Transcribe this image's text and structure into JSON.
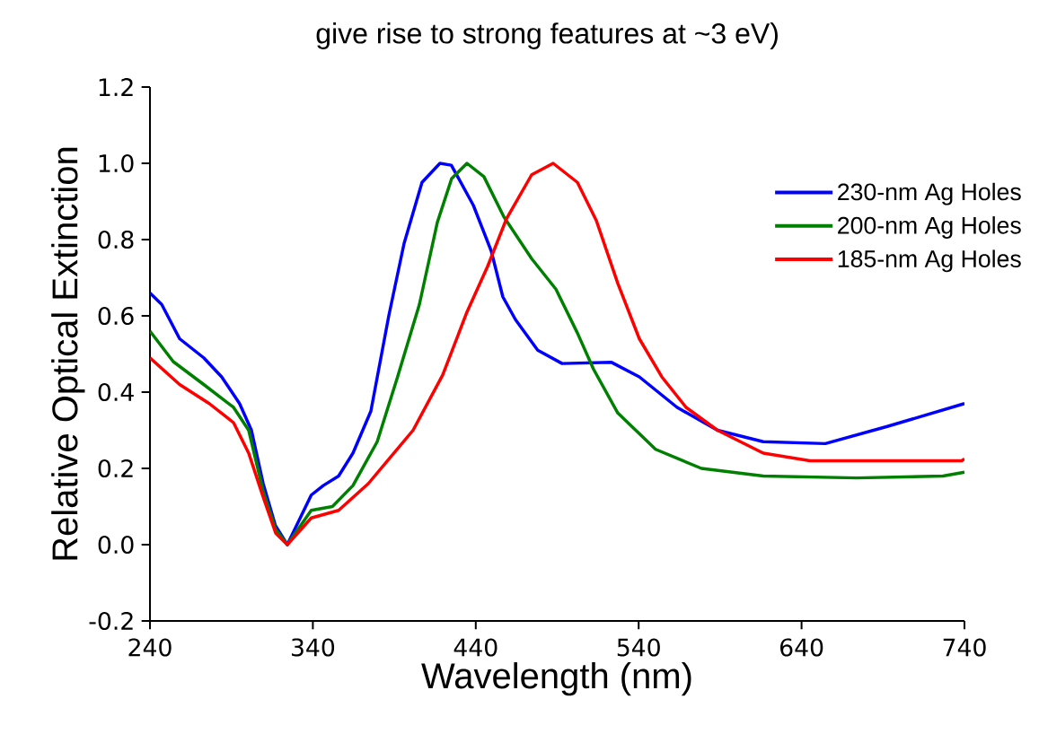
{
  "chart_data": {
    "type": "line",
    "title": "give rise to strong features at ~3 eV)",
    "xlabel": "Wavelength (nm)",
    "ylabel": "Relative Optical Extinction",
    "xlim": [
      240,
      740
    ],
    "xticks": [
      240,
      340,
      440,
      540,
      640,
      740
    ],
    "ylim": [
      -0.2,
      1.2
    ],
    "yticks": [
      {
        "value": -0.2,
        "label": "-0.2"
      },
      {
        "value": 0,
        "label": "0.0"
      },
      {
        "value": 0.2,
        "label": "0.2"
      },
      {
        "value": 0.4,
        "label": "0.4"
      },
      {
        "value": 0.6,
        "label": "0.6"
      },
      {
        "value": 0.8,
        "label": "0.8"
      },
      {
        "value": 1.0,
        "label": "1.0"
      },
      {
        "value": 1.2,
        "label": "1.2"
      }
    ],
    "legend": "top right",
    "series": [
      {
        "name": "230-nm Ag Holes",
        "color": "#0000ff",
        "x": [
          240,
          247.2,
          258.2,
          273,
          284,
          295,
          302.3,
          309.5,
          317,
          324.3,
          339,
          346.4,
          355.8,
          364.6,
          375.6,
          386.6,
          396,
          407,
          418,
          425,
          438.5,
          449.5,
          456.6,
          464.4,
          478,
          493,
          523.4,
          540.4,
          563.6,
          588.4,
          616.5,
          654.6,
          692.6,
          740
        ],
        "values": [
          0.66,
          0.63,
          0.54,
          0.49,
          0.44,
          0.37,
          0.3,
          0.16,
          0.05,
          0.0,
          0.13,
          0.155,
          0.18,
          0.24,
          0.35,
          0.6,
          0.79,
          0.95,
          1.0,
          0.995,
          0.89,
          0.77,
          0.65,
          0.59,
          0.51,
          0.475,
          0.478,
          0.44,
          0.36,
          0.3,
          0.27,
          0.265,
          0.31,
          0.37
        ]
      },
      {
        "name": "200-nm Ag Holes",
        "color": "#008000",
        "x": [
          240,
          254.3,
          273,
          291.3,
          300.6,
          309.5,
          317.2,
          324.3,
          339,
          352,
          364.6,
          379.5,
          392,
          405.4,
          416.4,
          425.2,
          434.6,
          445,
          457.2,
          474.3,
          489.2,
          502.4,
          512.3,
          527.2,
          550.4,
          578.5,
          616.5,
          673.8,
          726.8,
          740
        ],
        "values": [
          0.56,
          0.48,
          0.42,
          0.36,
          0.3,
          0.14,
          0.04,
          0.0,
          0.09,
          0.1,
          0.155,
          0.27,
          0.44,
          0.63,
          0.845,
          0.96,
          1.0,
          0.965,
          0.86,
          0.75,
          0.67,
          0.555,
          0.46,
          0.345,
          0.25,
          0.2,
          0.18,
          0.175,
          0.18,
          0.19
        ]
      },
      {
        "name": "185-nm Ag Holes",
        "color": "#ff0000",
        "x": [
          240,
          258.2,
          276.4,
          291.3,
          300.6,
          309.5,
          317.2,
          324.3,
          339,
          355.8,
          374,
          401.5,
          419.7,
          434.6,
          447.3,
          458.9,
          474.3,
          487.5,
          502.4,
          514,
          527.2,
          540.4,
          554.2,
          569.1,
          588.4,
          616.5,
          645.2,
          738.3,
          740
        ],
        "values": [
          0.49,
          0.42,
          0.37,
          0.32,
          0.24,
          0.125,
          0.03,
          0.0,
          0.07,
          0.09,
          0.16,
          0.3,
          0.445,
          0.61,
          0.73,
          0.855,
          0.97,
          1.0,
          0.95,
          0.85,
          0.685,
          0.54,
          0.44,
          0.36,
          0.3,
          0.24,
          0.22,
          0.22,
          0.225
        ]
      }
    ]
  }
}
